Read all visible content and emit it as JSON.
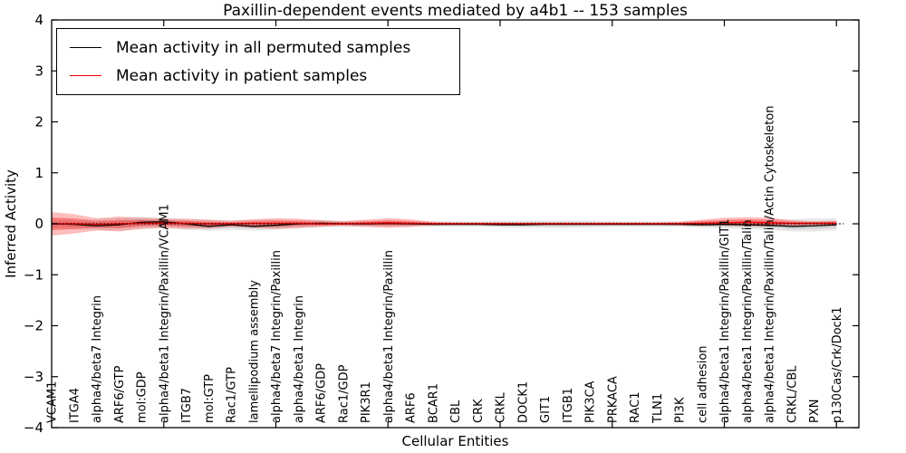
{
  "figure": {
    "title": "Paxillin-dependent events mediated by a4b1 -- 153 samples",
    "xlabel": "Cellular Entities",
    "ylabel": "Inferred Activity",
    "legend": {
      "items": [
        {
          "label": "Mean activity in all permuted samples",
          "color": "#000000"
        },
        {
          "label": "Mean activity in patient samples",
          "color": "#ff0000"
        }
      ]
    }
  },
  "chart_data": {
    "type": "line",
    "title": "Paxillin-dependent events mediated by a4b1 -- 153 samples",
    "xlabel": "Cellular Entities",
    "ylabel": "Inferred Activity",
    "ylim": [
      -4,
      4
    ],
    "yticks": [
      4,
      3,
      2,
      1,
      0,
      -1,
      -2,
      -3,
      -4
    ],
    "ytick_labels": [
      "4",
      "3",
      "2",
      "1",
      "0",
      "−1",
      "−2",
      "−3",
      "−4"
    ],
    "xtick_positions": [
      5,
      10,
      15,
      20,
      25,
      30,
      35
    ],
    "grid": false,
    "legend_position": "upper left",
    "zero_line": {
      "y": 0,
      "style": "dotted",
      "color": "#000000"
    },
    "categories": [
      "VCAM1",
      "ITGA4",
      "alpha4/beta7 Integrin",
      "ARF6/GTP",
      "mol:GDP",
      "alpha4/beta1 Integrin/Paxillin/VCAM1",
      "ITGB7",
      "mol:GTP",
      "Rac1/GTP",
      "lamellipodium assembly",
      "alpha4/beta7 Integrin/Paxillin",
      "alpha4/beta1 Integrin",
      "ARF6/GDP",
      "Rac1/GDP",
      "PIK3R1",
      "alpha4/beta1 Integrin/Paxillin",
      "ARF6",
      "BCAR1",
      "CBL",
      "CRK",
      "CRKL",
      "DOCK1",
      "GIT1",
      "ITGB1",
      "PIK3CA",
      "PRKACA",
      "RAC1",
      "TLN1",
      "PI3K",
      "cell adhesion",
      "alpha4/beta1 Integrin/Paxillin/GIT1",
      "alpha4/beta1 Integrin/Paxillin/Talin",
      "alpha4/beta1 Integrin/Paxillin/Talin/Actin Cytoskeleton",
      "CRKL/CBL",
      "PXN",
      "p130Cas/Crk/Dock1"
    ],
    "series": [
      {
        "name": "Mean activity in all permuted samples",
        "color": "#000000",
        "values": [
          0.0,
          -0.01,
          -0.04,
          -0.02,
          0.03,
          0.04,
          0.0,
          -0.05,
          -0.02,
          -0.05,
          -0.03,
          0.0,
          0.01,
          0.0,
          0.0,
          0.01,
          0.0,
          -0.01,
          -0.01,
          -0.01,
          -0.02,
          -0.02,
          -0.01,
          -0.01,
          -0.01,
          -0.01,
          -0.01,
          -0.01,
          -0.01,
          -0.02,
          -0.01,
          -0.02,
          -0.03,
          -0.05,
          -0.04,
          -0.02
        ]
      },
      {
        "name": "Mean activity in patient samples",
        "color": "#ff0000",
        "values": [
          0.0,
          0.0,
          -0.01,
          0.0,
          0.01,
          0.01,
          0.01,
          0.0,
          0.0,
          0.01,
          0.01,
          0.01,
          0.0,
          0.0,
          0.01,
          0.02,
          0.01,
          0.0,
          0.0,
          0.0,
          0.0,
          0.0,
          0.0,
          0.0,
          0.0,
          0.0,
          0.0,
          0.0,
          0.0,
          0.01,
          0.02,
          0.03,
          0.02,
          0.01,
          0.01,
          0.01
        ]
      }
    ],
    "bands": [
      {
        "series": "Mean activity in all permuted samples",
        "color": "#000000",
        "outer_opacity": 0.09,
        "inner_opacity": 0.1,
        "upper": [
          0.1,
          0.09,
          0.09,
          0.12,
          0.14,
          0.12,
          0.09,
          0.08,
          0.07,
          0.08,
          0.08,
          0.07,
          0.08,
          0.06,
          0.06,
          0.06,
          0.05,
          0.05,
          0.05,
          0.05,
          0.06,
          0.06,
          0.06,
          0.06,
          0.06,
          0.05,
          0.05,
          0.05,
          0.05,
          0.06,
          0.07,
          0.08,
          0.09,
          0.09,
          0.11,
          0.11
        ],
        "lower": [
          -0.1,
          -0.11,
          -0.12,
          -0.14,
          -0.1,
          -0.08,
          -0.11,
          -0.14,
          -0.12,
          -0.13,
          -0.12,
          -0.09,
          -0.07,
          -0.06,
          -0.06,
          -0.06,
          -0.06,
          -0.06,
          -0.06,
          -0.06,
          -0.07,
          -0.08,
          -0.08,
          -0.08,
          -0.07,
          -0.06,
          -0.06,
          -0.06,
          -0.06,
          -0.08,
          -0.09,
          -0.1,
          -0.12,
          -0.15,
          -0.15,
          -0.13
        ]
      },
      {
        "series": "Mean activity in patient samples",
        "color": "#ff0000",
        "outer_opacity": 0.26,
        "inner_opacity": 0.3,
        "upper": [
          0.23,
          0.19,
          0.11,
          0.14,
          0.12,
          0.1,
          0.1,
          0.08,
          0.06,
          0.09,
          0.11,
          0.1,
          0.07,
          0.05,
          0.08,
          0.11,
          0.09,
          0.04,
          0.03,
          0.03,
          0.03,
          0.03,
          0.03,
          0.03,
          0.03,
          0.03,
          0.03,
          0.03,
          0.04,
          0.08,
          0.12,
          0.13,
          0.12,
          0.07,
          0.05,
          0.06
        ],
        "lower": [
          -0.23,
          -0.19,
          -0.13,
          -0.15,
          -0.1,
          -0.08,
          -0.1,
          -0.09,
          -0.06,
          -0.08,
          -0.1,
          -0.08,
          -0.06,
          -0.04,
          -0.06,
          -0.08,
          -0.06,
          -0.03,
          -0.02,
          -0.02,
          -0.02,
          -0.02,
          -0.02,
          -0.02,
          -0.02,
          -0.02,
          -0.02,
          -0.02,
          -0.03,
          -0.04,
          -0.04,
          -0.05,
          -0.05,
          -0.04,
          -0.03,
          -0.04
        ]
      }
    ]
  }
}
